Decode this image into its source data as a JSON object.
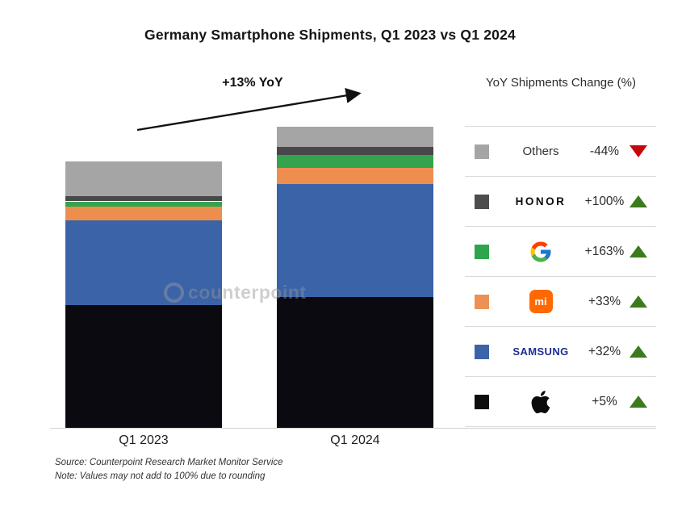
{
  "title": "Germany Smartphone Shipments, Q1 2023 vs Q1 2024",
  "annotation": {
    "label": "+13% YoY"
  },
  "legend": {
    "header": "YoY Shipments Change (%)",
    "rows": [
      {
        "brand": "Others",
        "brand_type": "text",
        "change": "-44%",
        "direction": "down",
        "swatch": "#a5a5a5"
      },
      {
        "brand": "HONOR",
        "brand_type": "wordmark-honor",
        "change": "+100%",
        "direction": "up",
        "swatch": "#4d4d4f"
      },
      {
        "brand": "Google",
        "brand_type": "google-logo",
        "change": "+163%",
        "direction": "up",
        "swatch": "#2ea44c"
      },
      {
        "brand": "Xiaomi",
        "brand_type": "xiaomi-logo",
        "logo_text": "mi",
        "change": "+33%",
        "direction": "up",
        "swatch": "#ec9154"
      },
      {
        "brand": "Samsung",
        "brand_type": "wordmark-samsung",
        "change": "+32%",
        "direction": "up",
        "swatch": "#3a63a8"
      },
      {
        "brand": "Apple",
        "brand_type": "apple-logo",
        "change": "+5%",
        "direction": "up",
        "swatch": "#0d0d0d"
      }
    ]
  },
  "chart_data": {
    "type": "bar",
    "stacked": true,
    "title": "Germany Smartphone Shipments, Q1 2023 vs Q1 2024",
    "categories": [
      "Q1 2023",
      "Q1 2024"
    ],
    "units": "shipment index, Q1 2023 total = 100 (no value labels shown on chart)",
    "totals": [
      100,
      113
    ],
    "total_yoy_change": "+13%",
    "series": [
      {
        "name": "Apple",
        "color": "#0a0a10",
        "values": [
          46,
          49
        ],
        "yoy_change": "+5%"
      },
      {
        "name": "Samsung",
        "color": "#3a63a8",
        "values": [
          32,
          42.5
        ],
        "yoy_change": "+32%"
      },
      {
        "name": "Xiaomi",
        "color": "#ee8e4e",
        "values": [
          5,
          6
        ],
        "yoy_change": "+33%"
      },
      {
        "name": "Google",
        "color": "#35a34d",
        "values": [
          2,
          5
        ],
        "yoy_change": "+163%"
      },
      {
        "name": "HONOR",
        "color": "#48484a",
        "values": [
          2,
          3
        ],
        "yoy_change": "+100%"
      },
      {
        "name": "Others",
        "color": "#a5a5a5",
        "values": [
          13,
          7.5
        ],
        "yoy_change": "-44%"
      }
    ],
    "legend_position": "right",
    "grid": false
  },
  "footer": {
    "source": "Source: Counterpoint Research Market Monitor Service",
    "note": "Note: Values may not add to 100% due to rounding"
  },
  "watermark": "counterpoint"
}
